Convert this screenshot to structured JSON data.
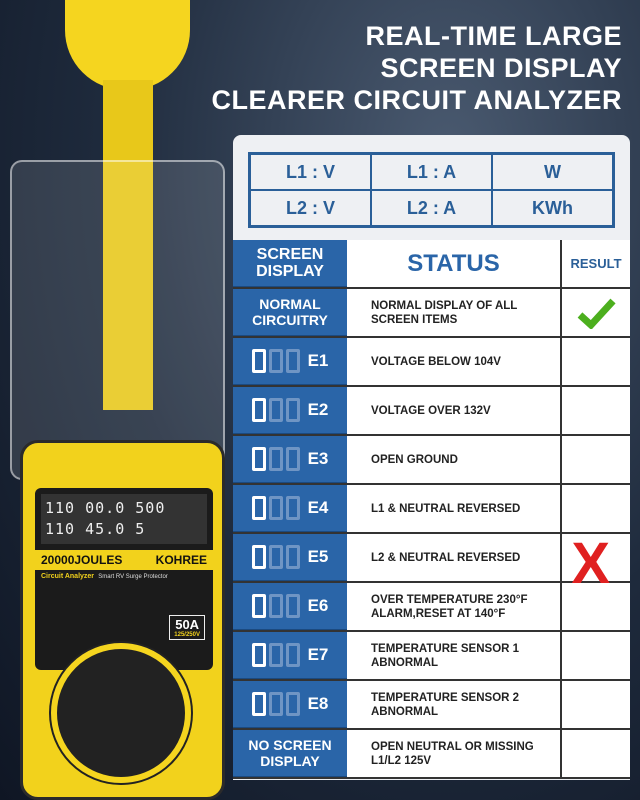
{
  "title": [
    "REAL-TIME LARGE",
    "SCREEN DISPLAY",
    "CLEARER CIRCUIT ANALYZER"
  ],
  "grid": [
    "L1 : V",
    "L1 : A",
    "W",
    "L2 : V",
    "L2 : A",
    "KWh"
  ],
  "header": {
    "screen": "SCREEN DISPLAY",
    "status": "STATUS",
    "result": "RESULT"
  },
  "rows": [
    {
      "display": "NORMAL CIRCUITRY",
      "status": "NORMAL DISPLAY OF ALL SCREEN ITEMS",
      "result": "check"
    },
    {
      "code": "E1",
      "status": "VOLTAGE BELOW  104V"
    },
    {
      "code": "E2",
      "status": "VOLTAGE OVER 132V"
    },
    {
      "code": "E3",
      "status": "OPEN GROUND"
    },
    {
      "code": "E4",
      "status": "L1 & NEUTRAL REVERSED"
    },
    {
      "code": "E5",
      "status": "L2 & NEUTRAL REVERSED"
    },
    {
      "code": "E6",
      "status": "OVER TEMPERATURE 230°F ALARM,RESET AT 140°F"
    },
    {
      "code": "E7",
      "status": "TEMPERATURE SENSOR 1 ABNORMAL"
    },
    {
      "code": "E8",
      "status": "TEMPERATURE SENSOR 2 ABNORMAL"
    },
    {
      "display": "NO SCREEN DISPLAY",
      "status": "OPEN NEUTRAL OR MISSING L1/L2 125V"
    }
  ],
  "fault_result": "X",
  "colors": {
    "blue": "#2a65a8",
    "check": "#4caf1e",
    "x": "#e02020",
    "yellow": "#f2d21c"
  },
  "device": {
    "lcd1": "110 00.0 500",
    "lcd2": "110 45.0 5",
    "joules": "20000JOULES",
    "brand": "KOHREE",
    "label": "Circuit Analyzer",
    "subtitle": "Smart RV Surge Protector",
    "amps": "50A",
    "volts": "125/250V"
  }
}
